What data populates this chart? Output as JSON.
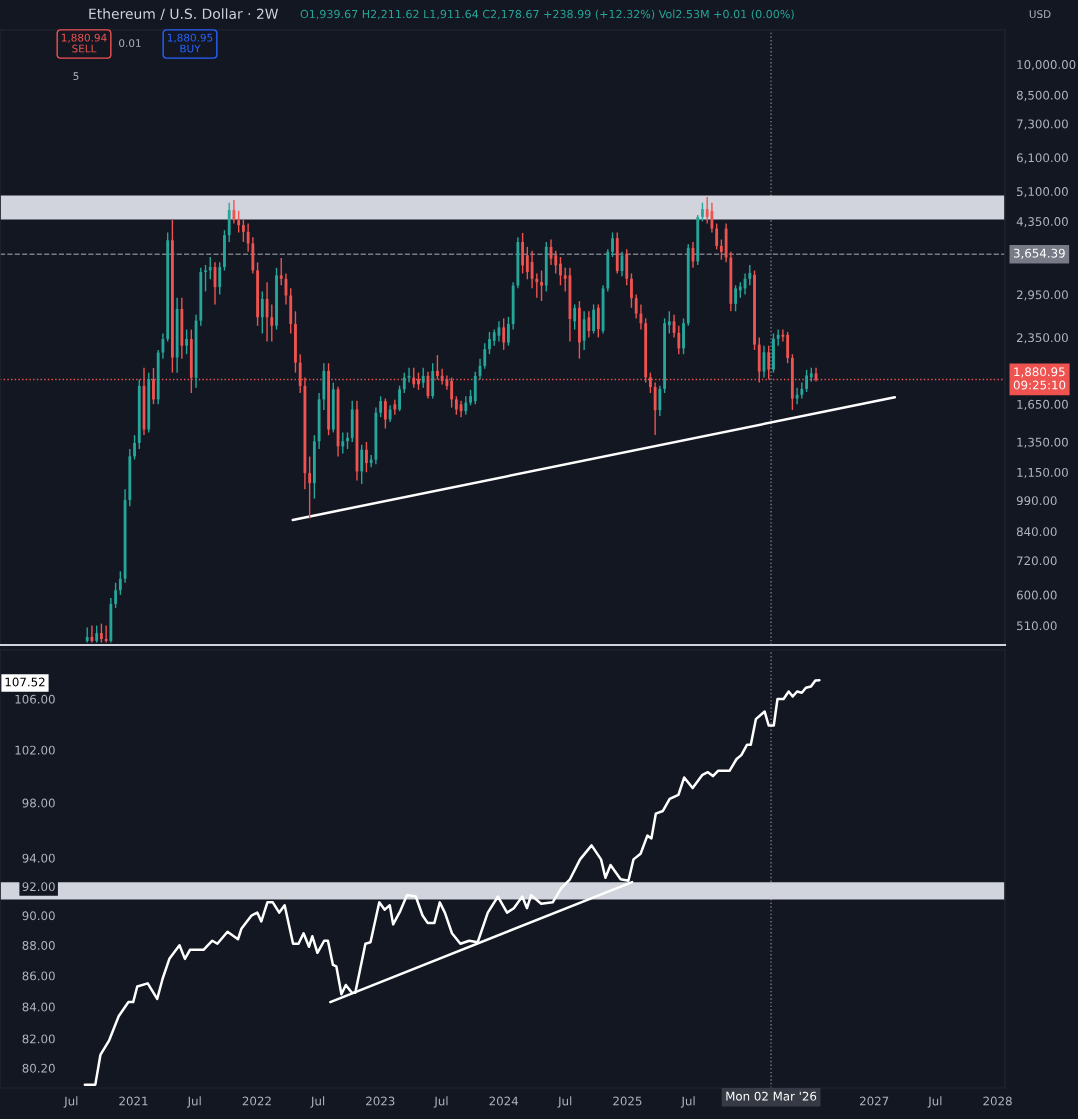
{
  "chart_data": [
    {
      "type": "candlestick",
      "title": "Ethereum / U.S. Dollar · 2W",
      "subtitle": "O1,939.67 H2,211.62 L1,911.64 C2,178.67 +238.99 (+12.32%) Vol2.53M +0.01 (0.00%)",
      "x": [
        "2020-08-17",
        "2020-08-31",
        "2020-09-14",
        "2020-09-28",
        "2020-10-12",
        "2020-10-26",
        "2020-11-09",
        "2020-11-23",
        "2020-12-07",
        "2020-12-21",
        "2021-01-04",
        "2021-01-18",
        "2021-02-01",
        "2021-02-15",
        "2021-03-01",
        "2021-03-15",
        "2021-03-29",
        "2021-04-12",
        "2021-04-26",
        "2021-05-10",
        "2021-05-24",
        "2021-06-07",
        "2021-06-21",
        "2021-07-05",
        "2021-07-19",
        "2021-08-02",
        "2021-08-16",
        "2021-08-30",
        "2021-09-13",
        "2021-09-27",
        "2021-10-11",
        "2021-10-25",
        "2021-11-08",
        "2021-11-22",
        "2021-12-06",
        "2021-12-20",
        "2022-01-03",
        "2022-01-17",
        "2022-01-31",
        "2022-02-14",
        "2022-02-28",
        "2022-03-14",
        "2022-03-28",
        "2022-04-11",
        "2022-04-25",
        "2022-05-09",
        "2022-05-23",
        "2022-06-06",
        "2022-06-20",
        "2022-07-04",
        "2022-07-18",
        "2022-08-01",
        "2022-08-15",
        "2022-08-29",
        "2022-09-12",
        "2022-09-26",
        "2022-10-10",
        "2022-10-24",
        "2022-11-07",
        "2022-11-21",
        "2022-12-05",
        "2022-12-19",
        "2023-01-02",
        "2023-01-16",
        "2023-01-30",
        "2023-02-13",
        "2023-02-27",
        "2023-03-13",
        "2023-03-27",
        "2023-04-10",
        "2023-04-24",
        "2023-05-08",
        "2023-05-22",
        "2023-06-05",
        "2023-06-19",
        "2023-07-03",
        "2023-07-17",
        "2023-07-31",
        "2023-08-14",
        "2023-08-28",
        "2023-09-11",
        "2023-09-25",
        "2023-10-09",
        "2023-10-23",
        "2023-11-06",
        "2023-11-20",
        "2023-12-04",
        "2023-12-18",
        "2024-01-01",
        "2024-01-15",
        "2024-01-29",
        "2024-02-12",
        "2024-02-26",
        "2024-03-11",
        "2024-03-25",
        "2024-04-08",
        "2024-04-22",
        "2024-05-06",
        "2024-05-20",
        "2024-06-03",
        "2024-06-17",
        "2024-07-01",
        "2024-07-15",
        "2024-07-29",
        "2024-08-12",
        "2024-08-26",
        "2024-09-09",
        "2024-09-23",
        "2024-10-07",
        "2024-10-21",
        "2024-11-04",
        "2024-11-18",
        "2024-12-02",
        "2024-12-16",
        "2024-12-30",
        "2025-01-13",
        "2025-01-27",
        "2025-02-10",
        "2025-02-24",
        "2025-03-10",
        "2025-03-24",
        "2025-04-07",
        "2025-04-21",
        "2025-05-05",
        "2025-05-19",
        "2025-06-02",
        "2025-06-16",
        "2025-06-30",
        "2025-07-14",
        "2025-07-28",
        "2025-08-11",
        "2025-08-25",
        "2025-09-08",
        "2025-09-22",
        "2025-10-06",
        "2025-10-20",
        "2025-11-03",
        "2025-11-17",
        "2025-12-01",
        "2025-12-15",
        "2025-12-29",
        "2026-01-12",
        "2026-01-26",
        "2026-02-09",
        "2026-02-23",
        "2026-03-09",
        "2026-03-23",
        "2026-04-06",
        "2026-04-20",
        "2026-05-04",
        "2026-05-18",
        "2026-06-01",
        "2026-06-15",
        "2026-06-29",
        "2026-07-13"
      ],
      "ohlc": [
        [
          470,
          505,
          466,
          480
        ],
        [
          480,
          510,
          466,
          470
        ],
        [
          470,
          510,
          466,
          490
        ],
        [
          490,
          515,
          466,
          475
        ],
        [
          475,
          510,
          466,
          470
        ],
        [
          470,
          590,
          466,
          572
        ],
        [
          572,
          640,
          560,
          615
        ],
        [
          615,
          680,
          600,
          654
        ],
        [
          654,
          1050,
          640,
          993
        ],
        [
          993,
          1300,
          960,
          1251
        ],
        [
          1251,
          1400,
          1230,
          1343
        ],
        [
          1343,
          1880,
          1300,
          1817
        ],
        [
          1817,
          2000,
          1400,
          1442
        ],
        [
          1442,
          1950,
          1420,
          1883
        ],
        [
          1883,
          2000,
          1650,
          1692
        ],
        [
          1692,
          2200,
          1650,
          2170
        ],
        [
          2170,
          2400,
          2100,
          2330
        ],
        [
          2330,
          4100,
          2300,
          3934
        ],
        [
          3934,
          4380,
          1950,
          2113
        ],
        [
          2113,
          2900,
          1950,
          2734
        ],
        [
          2734,
          2900,
          2100,
          2249
        ],
        [
          2249,
          2450,
          2150,
          2330
        ],
        [
          2330,
          2450,
          1750,
          1899
        ],
        [
          1899,
          2650,
          1800,
          2569
        ],
        [
          2569,
          3400,
          2500,
          3326
        ],
        [
          3326,
          3450,
          3000,
          3354
        ],
        [
          3354,
          3600,
          3200,
          3414
        ],
        [
          3414,
          3500,
          2800,
          3069
        ],
        [
          3069,
          3500,
          2950,
          3414
        ],
        [
          3414,
          4150,
          3350,
          4042
        ],
        [
          4042,
          4800,
          3900,
          4618
        ],
        [
          4618,
          4870,
          4300,
          4378
        ],
        [
          4378,
          4600,
          4100,
          4262
        ],
        [
          4262,
          4400,
          3900,
          4115
        ],
        [
          4115,
          4300,
          3700,
          3867
        ],
        [
          3867,
          4000,
          3300,
          3354
        ],
        [
          3354,
          3500,
          2500,
          2616
        ],
        [
          2616,
          3000,
          2400,
          2883
        ],
        [
          2883,
          3150,
          2300,
          2616
        ],
        [
          2616,
          2800,
          2300,
          2501
        ],
        [
          2501,
          3400,
          2450,
          3267
        ],
        [
          3267,
          3580,
          3100,
          3208
        ],
        [
          3208,
          3300,
          2800,
          2935
        ],
        [
          2935,
          3050,
          2400,
          2524
        ],
        [
          2524,
          2700,
          1950,
          2057
        ],
        [
          2057,
          2150,
          1750,
          1817
        ],
        [
          1817,
          1900,
          1050,
          1145
        ],
        [
          1145,
          1250,
          900,
          1085
        ],
        [
          1085,
          1400,
          1000,
          1355
        ],
        [
          1355,
          1750,
          1300,
          1692
        ],
        [
          1692,
          2050,
          1600,
          1968
        ],
        [
          1968,
          2050,
          1400,
          1442
        ],
        [
          1442,
          1850,
          1420,
          1785
        ],
        [
          1785,
          1810,
          1250,
          1319
        ],
        [
          1319,
          1420,
          1270,
          1355
        ],
        [
          1355,
          1420,
          1300,
          1380
        ],
        [
          1380,
          1680,
          1350,
          1604
        ],
        [
          1604,
          1680,
          1100,
          1155
        ],
        [
          1155,
          1330,
          1080,
          1296
        ],
        [
          1296,
          1350,
          1150,
          1207
        ],
        [
          1207,
          1260,
          1180,
          1229
        ],
        [
          1229,
          1620,
          1200,
          1576
        ],
        [
          1576,
          1720,
          1540,
          1677
        ],
        [
          1677,
          1700,
          1450,
          1521
        ],
        [
          1521,
          1640,
          1500,
          1604
        ],
        [
          1648,
          1690,
          1560,
          1604
        ],
        [
          1604,
          1820,
          1590,
          1785
        ],
        [
          1785,
          1950,
          1750,
          1899
        ],
        [
          1899,
          2000,
          1850,
          1917
        ],
        [
          1899,
          2000,
          1800,
          1833
        ],
        [
          1883,
          1950,
          1780,
          1833
        ],
        [
          1849,
          2000,
          1800,
          1917
        ],
        [
          1917,
          1960,
          1700,
          1722
        ],
        [
          1722,
          2050,
          1700,
          1968
        ],
        [
          1968,
          2140,
          1880,
          1917
        ],
        [
          1917,
          1990,
          1830,
          1866
        ],
        [
          1883,
          1920,
          1780,
          1817
        ],
        [
          1866,
          1900,
          1620,
          1692
        ],
        [
          1692,
          1720,
          1560,
          1604
        ],
        [
          1648,
          1680,
          1540,
          1590
        ],
        [
          1590,
          1720,
          1560,
          1663
        ],
        [
          1663,
          1780,
          1640,
          1722
        ],
        [
          1677,
          1960,
          1650,
          1917
        ],
        [
          1917,
          2100,
          1880,
          2021
        ],
        [
          2021,
          2280,
          1990,
          2209
        ],
        [
          2209,
          2420,
          2150,
          2330
        ],
        [
          2309,
          2450,
          2250,
          2415
        ],
        [
          2372,
          2560,
          2300,
          2479
        ],
        [
          2479,
          2600,
          2200,
          2288
        ],
        [
          2288,
          2620,
          2250,
          2524
        ],
        [
          2524,
          3150,
          2450,
          3095
        ],
        [
          3095,
          4000,
          3050,
          3900
        ],
        [
          3900,
          4090,
          3300,
          3444
        ],
        [
          3633,
          3800,
          3200,
          3326
        ],
        [
          3507,
          3720,
          3050,
          3208
        ],
        [
          3208,
          3300,
          2900,
          3151
        ],
        [
          3151,
          3350,
          2850,
          3095
        ],
        [
          3095,
          3900,
          3000,
          3799
        ],
        [
          3799,
          3950,
          3450,
          3570
        ],
        [
          3633,
          3720,
          3300,
          3444
        ],
        [
          3475,
          3600,
          3100,
          3267
        ],
        [
          3267,
          3400,
          3000,
          3208
        ],
        [
          3267,
          3400,
          2300,
          2592
        ],
        [
          2560,
          2800,
          2450,
          2750
        ],
        [
          2750,
          2850,
          2100,
          2288
        ],
        [
          2311,
          2700,
          2200,
          2586
        ],
        [
          2613,
          2700,
          2350,
          2432
        ],
        [
          2432,
          2800,
          2400,
          2722
        ],
        [
          2750,
          2800,
          2350,
          2456
        ],
        [
          2432,
          3100,
          2400,
          3048
        ],
        [
          3048,
          3750,
          3000,
          3702
        ],
        [
          3702,
          4100,
          3600,
          3977
        ],
        [
          3977,
          4100,
          3300,
          3342
        ],
        [
          3342,
          3700,
          3250,
          3628
        ],
        [
          3664,
          3750,
          3100,
          3208
        ],
        [
          3208,
          3300,
          2750,
          2894
        ],
        [
          2894,
          2950,
          2600,
          2667
        ],
        [
          2667,
          2800,
          2450,
          2534
        ],
        [
          2534,
          2600,
          1850,
          1902
        ],
        [
          1902,
          1950,
          1750,
          1807
        ],
        [
          1807,
          1850,
          1400,
          1598
        ],
        [
          1598,
          1820,
          1550,
          1789
        ],
        [
          1789,
          2600,
          1750,
          2534
        ],
        [
          2508,
          2700,
          2400,
          2560
        ],
        [
          2560,
          2650,
          2350,
          2408
        ],
        [
          2408,
          2500,
          2150,
          2218
        ],
        [
          2218,
          2600,
          2150,
          2534
        ],
        [
          2534,
          3850,
          2500,
          3780
        ],
        [
          3780,
          3900,
          3400,
          3517
        ],
        [
          3517,
          4500,
          3450,
          4453
        ],
        [
          4453,
          4800,
          4350,
          4639
        ],
        [
          4639,
          4950,
          4300,
          4453
        ],
        [
          4593,
          4800,
          4100,
          4186
        ],
        [
          4186,
          4300,
          3750,
          3818
        ],
        [
          3818,
          3950,
          3550,
          3700
        ],
        [
          4186,
          4300,
          3500,
          3591
        ],
        [
          3591,
          3700,
          2700,
          2808
        ],
        [
          2808,
          3100,
          2700,
          3048
        ],
        [
          3015,
          3150,
          2900,
          3079
        ],
        [
          3048,
          3300,
          2950,
          3208
        ],
        [
          3208,
          3450,
          3100,
          3309
        ],
        [
          3274,
          3350,
          2200,
          2263
        ],
        [
          2263,
          2350,
          1850,
          1961
        ],
        [
          1961,
          2250,
          1900,
          2172
        ],
        [
          2172,
          2250,
          1880,
          1981
        ],
        [
          1981,
          2400,
          1950,
          2334
        ],
        [
          2334,
          2450,
          2250,
          2383
        ],
        [
          2383,
          2450,
          2300,
          2358
        ],
        [
          2383,
          2420,
          2050,
          2108
        ],
        [
          2108,
          2150,
          1600,
          1699
        ],
        [
          1699,
          1800,
          1650,
          1734
        ],
        [
          1734,
          1850,
          1700,
          1789
        ],
        [
          1789,
          1980,
          1760,
          1921
        ],
        [
          1902,
          2000,
          1860,
          1942
        ],
        [
          1942,
          2000,
          1860,
          1880.95
        ]
      ],
      "series": [
        {
          "type": "line",
          "x": [
            "2022-04-17",
            "2027-03-03"
          ],
          "values": [
            893,
            1711
          ],
          "color": "#ffffff"
        }
      ],
      "log": true,
      "xlim": [
        "2019-12-03",
        "2028-01-23"
      ],
      "ylim": [
        460,
        12000
      ],
      "yticks": [
        {
          "value": 510,
          "label": "510.00"
        },
        {
          "value": 600,
          "label": "600.00"
        },
        {
          "value": 720,
          "label": "720.00"
        },
        {
          "value": 840,
          "label": "840.00"
        },
        {
          "value": 990,
          "label": "990.00"
        },
        {
          "value": 1150,
          "label": "1,150.00"
        },
        {
          "value": 1350,
          "label": "1,350.00"
        },
        {
          "value": 1650,
          "label": "1,650.00"
        },
        {
          "value": 2350,
          "label": "2,350.00"
        },
        {
          "value": 2950,
          "label": "2,950.00"
        },
        {
          "value": 4350,
          "label": "4,350.00"
        },
        {
          "value": 5100,
          "label": "5,100.00"
        },
        {
          "value": 6100,
          "label": "6,100.00"
        },
        {
          "value": 7300,
          "label": "7,300.00"
        },
        {
          "value": 8500,
          "label": "8,500.00"
        },
        {
          "value": 10000,
          "label": "10,000.00"
        }
      ],
      "tick_labels": "y",
      "grid": false,
      "bands": [
        {
          "axis": "y",
          "from": 4390,
          "to": 4990,
          "color": "#d1d4dc"
        }
      ],
      "ref_lines": [
        {
          "axis": "y",
          "value": 3654.39,
          "label": "3,654.39",
          "color": "#787b86",
          "line_style": "dashed"
        },
        {
          "axis": "y",
          "value": 1880.95,
          "label": "1,880.95\n09:25:10",
          "color": "#ef5350",
          "line_style": "dotted"
        },
        {
          "axis": "x",
          "value": "2026-03-02",
          "color": "#787b86",
          "line_style": "dotted"
        }
      ],
      "annotations": [
        "1,880.94\nSELL",
        "0.01",
        "1,880.95\nBUY",
        "5",
        "USD"
      ]
    },
    {
      "type": "line",
      "series": [
        {
          "x": [
            "2020-08-10",
            "2020-09-10",
            "2020-09-25",
            "2020-10-21",
            "2020-11-18",
            "2020-12-17",
            "2020-12-31",
            "2021-01-12",
            "2021-02-12",
            "2021-03-12",
            "2021-03-28",
            "2021-04-17",
            "2021-05-17",
            "2021-06-02",
            "2021-06-17",
            "2021-07-27",
            "2021-08-22",
            "2021-09-06",
            "2021-10-06",
            "2021-11-06",
            "2021-11-16",
            "2021-12-16",
            "2022-01-02",
            "2022-01-14",
            "2022-02-01",
            "2022-02-17",
            "2022-03-08",
            "2022-03-24",
            "2022-04-18",
            "2022-05-04",
            "2022-05-19",
            "2022-06-04",
            "2022-06-14",
            "2022-06-29",
            "2022-07-19",
            "2022-07-30",
            "2022-08-14",
            "2022-08-24",
            "2022-09-08",
            "2022-09-21",
            "2022-10-09",
            "2022-10-19",
            "2022-11-18",
            "2022-12-03",
            "2022-12-29",
            "2023-01-14",
            "2023-01-29",
            "2023-02-08",
            "2023-03-01",
            "2023-03-21",
            "2023-04-16",
            "2023-05-06",
            "2023-05-21",
            "2023-06-10",
            "2023-06-26",
            "2023-07-11",
            "2023-08-01",
            "2023-08-26",
            "2023-09-21",
            "2023-10-16",
            "2023-11-15",
            "2023-12-15",
            "2024-01-11",
            "2024-01-31",
            "2024-02-25",
            "2024-03-10",
            "2024-03-22",
            "2024-04-21",
            "2024-05-25",
            "2024-06-20",
            "2024-07-15",
            "2024-08-14",
            "2024-09-17",
            "2024-10-15",
            "2024-10-28",
            "2024-11-12",
            "2024-12-12",
            "2025-01-04",
            "2025-01-19",
            "2025-02-09",
            "2025-03-01",
            "2025-03-13",
            "2025-03-26",
            "2025-04-16",
            "2025-05-06",
            "2025-06-01",
            "2025-06-18",
            "2025-07-13",
            "2025-08-11",
            "2025-08-27",
            "2025-09-11",
            "2025-09-26",
            "2025-10-30",
            "2025-11-20",
            "2025-12-04",
            "2025-12-21",
            "2026-01-01",
            "2026-01-16",
            "2026-02-11",
            "2026-02-23",
            "2026-03-10",
            "2026-03-21",
            "2026-04-08",
            "2026-04-23",
            "2026-05-05",
            "2026-05-18",
            "2026-06-01",
            "2026-06-13",
            "2026-06-28",
            "2026-07-11",
            "2026-07-23"
          ],
          "values": [
            79.2,
            79.2,
            81.0,
            81.9,
            83.4,
            84.3,
            84.3,
            85.3,
            85.5,
            84.5,
            85.8,
            87.1,
            88.0,
            87.1,
            87.7,
            87.7,
            88.3,
            88.1,
            88.9,
            88.4,
            89.1,
            90.0,
            90.2,
            89.6,
            90.9,
            90.9,
            90.2,
            90.7,
            88.1,
            88.1,
            88.8,
            87.9,
            88.6,
            87.5,
            88.3,
            88.3,
            86.7,
            86.6,
            84.8,
            85.4,
            84.9,
            84.9,
            88.1,
            88.2,
            90.9,
            90.4,
            90.7,
            89.4,
            90.3,
            91.4,
            91.3,
            90.0,
            89.5,
            89.5,
            90.9,
            90.2,
            88.8,
            88.1,
            88.3,
            88.2,
            90.2,
            91.3,
            90.2,
            90.5,
            91.3,
            90.5,
            91.4,
            90.8,
            90.9,
            91.9,
            92.5,
            93.9,
            94.9,
            93.9,
            92.6,
            93.5,
            92.5,
            92.4,
            93.9,
            94.3,
            95.6,
            95.4,
            97.2,
            97.4,
            98.3,
            98.6,
            99.9,
            99.1,
            100.1,
            100.3,
            100.0,
            100.4,
            100.4,
            101.3,
            101.6,
            102.4,
            102.4,
            104.4,
            105.0,
            103.9,
            103.9,
            106.0,
            106.0,
            106.6,
            106.2,
            106.6,
            106.5,
            106.9,
            107.0,
            107.5,
            107.52
          ],
          "color": "#ffffff"
        },
        {
          "x": [
            "2022-08-06",
            "2025-01-15"
          ],
          "values": [
            84.3,
            92.3
          ],
          "color": "#ffffff"
        }
      ],
      "log": true,
      "xlim": [
        "2019-12-03",
        "2028-01-23"
      ],
      "ylim": [
        79,
        110
      ],
      "yticks": [
        {
          "value": 80.2,
          "label": "80.20"
        },
        {
          "value": 82,
          "label": "82.00"
        },
        {
          "value": 84,
          "label": "84.00"
        },
        {
          "value": 86,
          "label": "86.00"
        },
        {
          "value": 88,
          "label": "88.00"
        },
        {
          "value": 90,
          "label": "90.00"
        },
        {
          "value": 92,
          "label": "92.00"
        },
        {
          "value": 94,
          "label": "94.00"
        },
        {
          "value": 98,
          "label": "98.00"
        },
        {
          "value": 102,
          "label": "102.00"
        },
        {
          "value": 106,
          "label": "106.00"
        }
      ],
      "xticks": [
        {
          "value": "2020-07-01",
          "label": "Jul"
        },
        {
          "value": "2021-01-01",
          "label": "2021"
        },
        {
          "value": "2021-07-01",
          "label": "Jul"
        },
        {
          "value": "2022-01-01",
          "label": "2022"
        },
        {
          "value": "2022-07-01",
          "label": "Jul"
        },
        {
          "value": "2023-01-01",
          "label": "2023"
        },
        {
          "value": "2023-07-01",
          "label": "Jul"
        },
        {
          "value": "2024-01-01",
          "label": "2024"
        },
        {
          "value": "2024-07-01",
          "label": "Jul"
        },
        {
          "value": "2025-01-01",
          "label": "2025"
        },
        {
          "value": "2025-07-01",
          "label": "Jul"
        },
        {
          "value": "2027-01-01",
          "label": "2027"
        },
        {
          "value": "2027-07-01",
          "label": "Jul"
        },
        {
          "value": "2028-01-01",
          "label": "2028"
        }
      ],
      "grid": false,
      "bands": [
        {
          "axis": "y",
          "from": 91.1,
          "to": 92.3,
          "color": "#d1d4dc"
        }
      ],
      "ref_lines": [
        {
          "axis": "x",
          "value": "2026-03-02",
          "label": "Mon 02 Mar '26",
          "color": "#787b86",
          "line_style": "dotted"
        }
      ],
      "annotations": [
        "107.52"
      ]
    }
  ]
}
